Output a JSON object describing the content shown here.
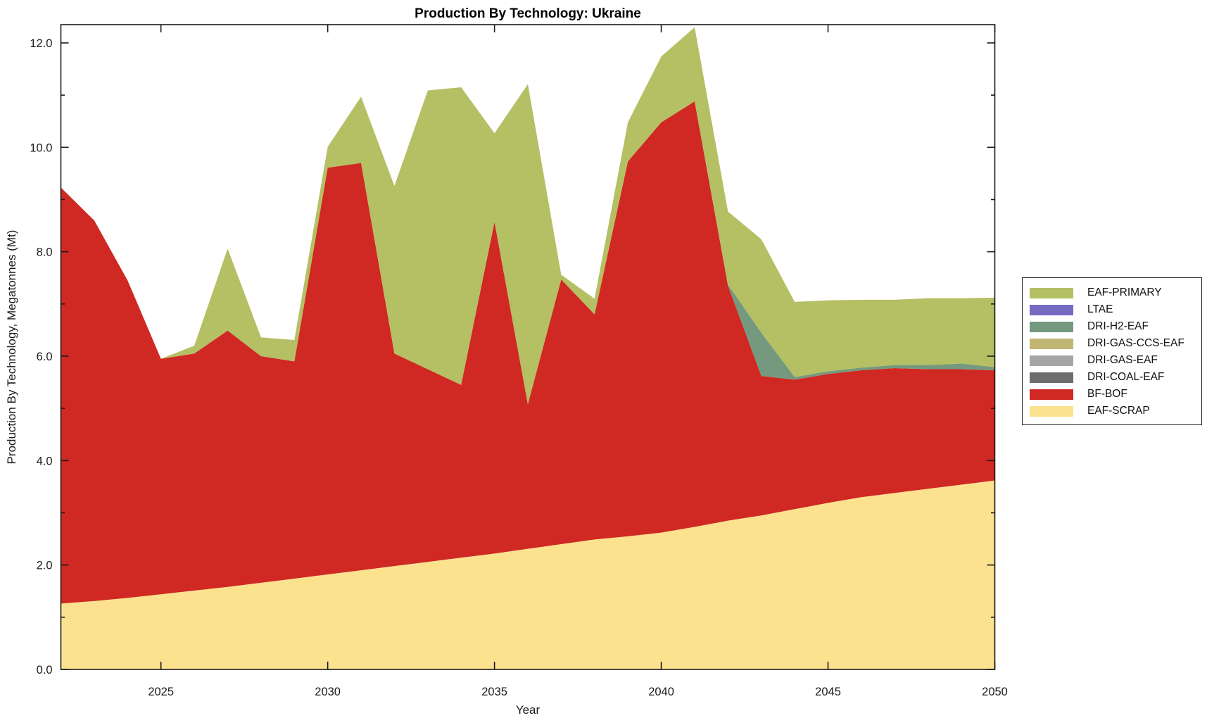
{
  "title": "Production By Technology: Ukraine",
  "axes": {
    "xlabel": "Year",
    "ylabel": "Production By Technology, Megatonnes (Mt)"
  },
  "legend": {
    "items": [
      {
        "label": "EAF-PRIMARY",
        "color": "#b5bf63"
      },
      {
        "label": "LTAE",
        "color": "#7669c2"
      },
      {
        "label": "DRI-H2-EAF",
        "color": "#74997e"
      },
      {
        "label": "DRI-GAS-CCS-EAF",
        "color": "#c1b573"
      },
      {
        "label": "DRI-GAS-EAF",
        "color": "#a5a5a5"
      },
      {
        "label": "DRI-COAL-EAF",
        "color": "#6d6d6d"
      },
      {
        "label": "BF-BOF",
        "color": "#d02823"
      },
      {
        "label": "EAF-SCRAP",
        "color": "#fce28f"
      }
    ]
  },
  "chart_data": {
    "type": "area",
    "stacked": true,
    "title": "Production By Technology: Ukraine",
    "xlabel": "Year",
    "ylabel": "Production By Technology, Megatonnes (Mt)",
    "grid": false,
    "legend_position": "outside-right",
    "x": [
      2022,
      2023,
      2024,
      2025,
      2026,
      2027,
      2028,
      2029,
      2030,
      2031,
      2032,
      2033,
      2034,
      2035,
      2036,
      2037,
      2038,
      2039,
      2040,
      2041,
      2042,
      2043,
      2044,
      2045,
      2046,
      2047,
      2048,
      2049,
      2050
    ],
    "xlim": [
      2022,
      2050
    ],
    "ylim": [
      0,
      12.35
    ],
    "x_major_ticks": [
      2025,
      2030,
      2035,
      2040,
      2045,
      2050
    ],
    "y_major_ticks": [
      0,
      2,
      4,
      6,
      8,
      10,
      12
    ],
    "y_major_tick_labels": [
      "0.0",
      "2.0",
      "4.0",
      "6.0",
      "8.0",
      "10.0",
      "12.0"
    ],
    "y_minor_ticks": [
      1,
      3,
      5,
      7,
      9,
      11
    ],
    "series_note": "stack order bottom-to-top; legend shows reverse order; values in megatonnes (Mt)",
    "series": [
      {
        "name": "EAF-SCRAP",
        "color": "#fce28f",
        "values": [
          1.26,
          1.31,
          1.37,
          1.44,
          1.51,
          1.58,
          1.66,
          1.74,
          1.82,
          1.9,
          1.98,
          2.06,
          2.14,
          2.22,
          2.31,
          2.4,
          2.49,
          2.55,
          2.62,
          2.73,
          2.85,
          2.95,
          3.07,
          3.19,
          3.3,
          3.38,
          3.46,
          3.54,
          3.62
        ]
      },
      {
        "name": "BF-BOF",
        "color": "#d02823",
        "values": [
          7.97,
          7.29,
          6.08,
          4.51,
          4.54,
          4.91,
          4.34,
          4.16,
          7.79,
          7.8,
          4.07,
          3.69,
          3.31,
          6.35,
          2.77,
          5.07,
          4.31,
          7.18,
          7.86,
          8.15,
          4.5,
          2.67,
          2.48,
          2.47,
          2.43,
          2.39,
          2.29,
          2.21,
          2.11
        ]
      },
      {
        "name": "DRI-COAL-EAF",
        "color": "#6d6d6d",
        "values": [
          0,
          0,
          0,
          0,
          0,
          0,
          0,
          0,
          0,
          0,
          0,
          0,
          0,
          0,
          0,
          0,
          0,
          0,
          0,
          0,
          0,
          0,
          0,
          0,
          0,
          0,
          0,
          0,
          0
        ]
      },
      {
        "name": "DRI-GAS-EAF",
        "color": "#a5a5a5",
        "values": [
          0,
          0,
          0,
          0,
          0,
          0,
          0,
          0,
          0,
          0,
          0,
          0,
          0,
          0,
          0,
          0,
          0,
          0,
          0,
          0,
          0,
          0,
          0,
          0,
          0,
          0,
          0,
          0,
          0
        ]
      },
      {
        "name": "DRI-GAS-CCS-EAF",
        "color": "#c1b573",
        "values": [
          0,
          0,
          0,
          0,
          0,
          0,
          0,
          0,
          0,
          0,
          0,
          0,
          0,
          0,
          0,
          0,
          0,
          0,
          0,
          0,
          0,
          0,
          0,
          0,
          0,
          0,
          0,
          0,
          0
        ]
      },
      {
        "name": "DRI-H2-EAF",
        "color": "#74997e",
        "values": [
          0,
          0,
          0,
          0,
          0,
          0,
          0,
          0,
          0,
          0,
          0,
          0,
          0,
          0,
          0,
          0,
          0,
          0,
          0,
          0,
          0.02,
          0.83,
          0.05,
          0.05,
          0.05,
          0.06,
          0.08,
          0.11,
          0.06
        ]
      },
      {
        "name": "LTAE",
        "color": "#7669c2",
        "values": [
          0,
          0,
          0,
          0,
          0,
          0,
          0,
          0,
          0,
          0,
          0,
          0,
          0,
          0,
          0,
          0,
          0,
          0,
          0,
          0,
          0,
          0,
          0,
          0,
          0,
          0,
          0,
          0,
          0
        ]
      },
      {
        "name": "EAF-PRIMARY",
        "color": "#b5bf63",
        "values": [
          0,
          0,
          0,
          0,
          0.15,
          1.57,
          0.36,
          0.41,
          0.4,
          1.27,
          3.21,
          5.34,
          5.7,
          1.7,
          6.13,
          0.09,
          0.3,
          0.75,
          1.26,
          1.42,
          1.4,
          1.79,
          1.44,
          1.36,
          1.3,
          1.25,
          1.28,
          1.25,
          1.33
        ]
      }
    ]
  },
  "layout_colors": {
    "axis": "#1a1a1a",
    "background": "#ffffff"
  }
}
